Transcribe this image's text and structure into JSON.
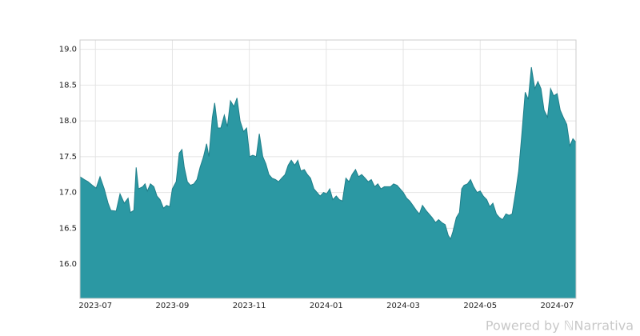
{
  "chart_data": {
    "type": "area",
    "x": [
      -0.4,
      -0.29,
      -0.19,
      -0.08,
      0.02,
      0.12,
      0.23,
      0.33,
      0.4,
      0.54,
      0.64,
      0.75,
      0.85,
      0.91,
      1.0,
      1.06,
      1.12,
      1.23,
      1.29,
      1.35,
      1.43,
      1.52,
      1.6,
      1.68,
      1.77,
      1.85,
      1.93,
      2.0,
      2.1,
      2.18,
      2.25,
      2.31,
      2.39,
      2.47,
      2.56,
      2.64,
      2.72,
      2.81,
      2.89,
      2.95,
      3.04,
      3.1,
      3.18,
      3.26,
      3.35,
      3.43,
      3.51,
      3.6,
      3.68,
      3.76,
      3.85,
      3.93,
      4.01,
      4.09,
      4.18,
      4.26,
      4.35,
      4.43,
      4.51,
      4.59,
      4.68,
      4.76,
      4.84,
      4.93,
      5.01,
      5.09,
      5.18,
      5.26,
      5.34,
      5.43,
      5.51,
      5.59,
      5.68,
      5.76,
      5.84,
      5.93,
      6.01,
      6.09,
      6.17,
      6.26,
      6.34,
      6.42,
      6.51,
      6.59,
      6.67,
      6.76,
      6.84,
      6.92,
      7.01,
      7.09,
      7.17,
      7.26,
      7.34,
      7.42,
      7.51,
      7.59,
      7.67,
      7.75,
      7.84,
      7.92,
      8.0,
      8.09,
      8.17,
      8.25,
      8.34,
      8.42,
      8.5,
      8.59,
      8.67,
      8.75,
      8.84,
      8.92,
      9.0,
      9.09,
      9.17,
      9.23,
      9.29,
      9.38,
      9.46,
      9.52,
      9.58,
      9.67,
      9.75,
      9.83,
      9.92,
      10.0,
      10.08,
      10.17,
      10.25,
      10.33,
      10.42,
      10.5,
      10.58,
      10.67,
      10.75,
      10.83,
      10.92,
      11.0,
      11.08,
      11.17,
      11.25,
      11.33,
      11.42,
      11.5,
      11.58,
      11.66,
      11.75,
      11.83,
      11.91,
      12.0,
      12.08,
      12.16,
      12.25,
      12.33,
      12.41,
      12.49
    ],
    "values": [
      17.22,
      17.18,
      17.15,
      17.1,
      17.06,
      17.22,
      17.05,
      16.85,
      16.75,
      16.74,
      16.98,
      16.85,
      16.92,
      16.72,
      16.75,
      17.35,
      17.05,
      17.08,
      17.12,
      17.02,
      17.12,
      17.08,
      16.95,
      16.9,
      16.78,
      16.82,
      16.8,
      17.05,
      17.15,
      17.55,
      17.6,
      17.35,
      17.15,
      17.1,
      17.12,
      17.18,
      17.35,
      17.5,
      17.68,
      17.5,
      18.05,
      18.25,
      17.9,
      17.9,
      18.08,
      17.92,
      18.28,
      18.2,
      18.32,
      18.0,
      17.85,
      17.9,
      17.5,
      17.52,
      17.5,
      17.82,
      17.5,
      17.4,
      17.25,
      17.2,
      17.18,
      17.15,
      17.2,
      17.25,
      17.38,
      17.45,
      17.38,
      17.45,
      17.3,
      17.32,
      17.25,
      17.2,
      17.05,
      17.0,
      16.95,
      17.0,
      16.98,
      17.05,
      16.9,
      16.95,
      16.9,
      16.88,
      17.2,
      17.15,
      17.25,
      17.32,
      17.22,
      17.25,
      17.2,
      17.15,
      17.18,
      17.08,
      17.12,
      17.05,
      17.08,
      17.08,
      17.08,
      17.12,
      17.1,
      17.05,
      17.0,
      16.92,
      16.88,
      16.82,
      16.75,
      16.7,
      16.82,
      16.75,
      16.7,
      16.65,
      16.58,
      16.62,
      16.58,
      16.55,
      16.4,
      16.35,
      16.45,
      16.65,
      16.72,
      17.05,
      17.1,
      17.12,
      17.18,
      17.08,
      17.0,
      17.02,
      16.95,
      16.9,
      16.8,
      16.85,
      16.7,
      16.65,
      16.62,
      16.7,
      16.68,
      16.7,
      17.0,
      17.3,
      17.8,
      18.4,
      18.3,
      18.75,
      18.45,
      18.55,
      18.45,
      18.15,
      18.05,
      18.45,
      18.35,
      18.38,
      18.15,
      18.05,
      17.95,
      17.65,
      17.75,
      17.7
    ],
    "color": "#2b98a3",
    "line_color": "#1f7f8a",
    "xlim": [
      -0.4,
      12.49
    ],
    "xticks": [
      {
        "value": 0,
        "label": "2023-07"
      },
      {
        "value": 2,
        "label": "2023-09"
      },
      {
        "value": 4,
        "label": "2023-11"
      },
      {
        "value": 6,
        "label": "2024-01"
      },
      {
        "value": 8,
        "label": "2024-03"
      },
      {
        "value": 10,
        "label": "2024-05"
      },
      {
        "value": 12,
        "label": "2024-07"
      }
    ],
    "ylim": [
      15.52,
      19.13
    ],
    "yticks": [
      {
        "value": 16,
        "label": "16.0"
      },
      {
        "value": 16.5,
        "label": "16.5"
      },
      {
        "value": 17,
        "label": "17.0"
      },
      {
        "value": 17.5,
        "label": "17.5"
      },
      {
        "value": 18,
        "label": "18.0"
      },
      {
        "value": 18.5,
        "label": "18.5"
      },
      {
        "value": 19,
        "label": "19.0"
      }
    ],
    "grid": true,
    "watermark": "Powered by ℕNarrativa"
  }
}
